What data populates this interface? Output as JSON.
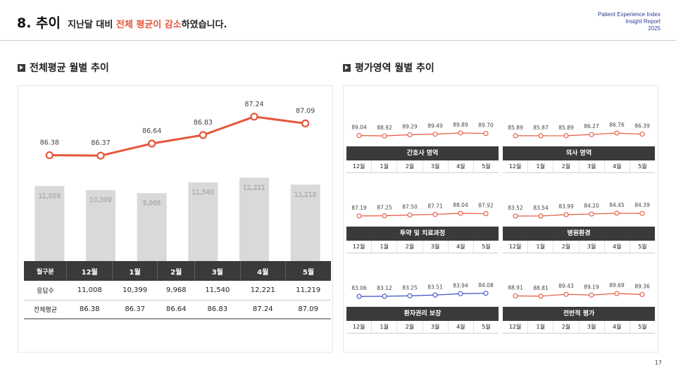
{
  "header": {
    "number": "8. 추이",
    "subtitle_pre": "지난달 대비 ",
    "subtitle_highlight": "전체 평균이 감소",
    "subtitle_post": "하였습니다.",
    "brand_line1": "Patient Experience Index",
    "brand_line2": "Insight Report",
    "brand_line3": "2025"
  },
  "left_section": {
    "title": "전체평균 월별 추이"
  },
  "right_section": {
    "title": "평가영역 월별 추이"
  },
  "months": [
    "12월",
    "1월",
    "2월",
    "3월",
    "4월",
    "5월"
  ],
  "table": {
    "corner": "월구분",
    "rows": [
      {
        "label": "응답수",
        "values": [
          "11,008",
          "10,399",
          "9,968",
          "11,540",
          "12,221",
          "11,219"
        ]
      },
      {
        "label": "전체평균",
        "values": [
          "86.38",
          "86.37",
          "86.64",
          "86.83",
          "87.24",
          "87.09"
        ]
      }
    ]
  },
  "colors": {
    "accent": "#e5573b",
    "blue": "#3b4fc4",
    "bar": "#d9d9d9",
    "dark": "#3a3a3a"
  },
  "chart_data": [
    {
      "type": "bar+line",
      "categories": [
        "12월",
        "1월",
        "2월",
        "3월",
        "4월",
        "5월"
      ],
      "series": [
        {
          "type": "bar",
          "values": [
            11008,
            10399,
            9968,
            11540,
            12221,
            11219
          ],
          "labels": [
            "11,008",
            "10,399",
            "9,968",
            "11,540",
            "12,221",
            "11,219"
          ]
        },
        {
          "type": "line",
          "values": [
            86.38,
            86.37,
            86.64,
            86.83,
            87.24,
            87.09
          ],
          "labels": [
            "86.38",
            "86.37",
            "86.64",
            "86.83",
            "87.24",
            "87.09"
          ]
        }
      ]
    },
    {
      "type": "line",
      "title": "간호사 영역",
      "categories": [
        "12월",
        "1월",
        "2월",
        "3월",
        "4월",
        "5월"
      ],
      "values": [
        89.04,
        88.92,
        89.29,
        89.49,
        89.89,
        89.7
      ],
      "labels": [
        "89.04",
        "88.92",
        "89.29",
        "89.49",
        "89.89",
        "89.70"
      ]
    },
    {
      "type": "line",
      "title": "의사 영역",
      "categories": [
        "12월",
        "1월",
        "2월",
        "3월",
        "4월",
        "5월"
      ],
      "values": [
        85.89,
        85.87,
        85.89,
        86.27,
        86.76,
        86.39
      ],
      "labels": [
        "85.89",
        "85.87",
        "85.89",
        "86.27",
        "86.76",
        "86.39"
      ]
    },
    {
      "type": "line",
      "title": "투약 및 치료과정",
      "categories": [
        "12월",
        "1월",
        "2월",
        "3월",
        "4월",
        "5월"
      ],
      "values": [
        87.19,
        87.25,
        87.5,
        87.71,
        88.04,
        87.92
      ],
      "labels": [
        "87.19",
        "87.25",
        "87.50",
        "87.71",
        "88.04",
        "87.92"
      ]
    },
    {
      "type": "line",
      "title": "병원환경",
      "categories": [
        "12월",
        "1월",
        "2월",
        "3월",
        "4월",
        "5월"
      ],
      "values": [
        83.52,
        83.54,
        83.99,
        84.2,
        84.45,
        84.39
      ],
      "labels": [
        "83.52",
        "83.54",
        "83.99",
        "84.20",
        "84.45",
        "84.39"
      ]
    },
    {
      "type": "line",
      "title": "환자권리 보장",
      "categories": [
        "12월",
        "1월",
        "2월",
        "3월",
        "4월",
        "5월"
      ],
      "values": [
        83.06,
        83.12,
        83.25,
        83.51,
        83.94,
        84.08
      ],
      "labels": [
        "83.06",
        "83.12",
        "83.25",
        "83.51",
        "83.94",
        "84.08"
      ]
    },
    {
      "type": "line",
      "title": "전반적 평가",
      "categories": [
        "12월",
        "1월",
        "2월",
        "3월",
        "4월",
        "5월"
      ],
      "values": [
        88.91,
        88.81,
        89.43,
        89.19,
        89.69,
        89.36
      ],
      "labels": [
        "88.91",
        "88.81",
        "89.43",
        "89.19",
        "89.69",
        "89.36"
      ]
    }
  ],
  "page_number": "17"
}
